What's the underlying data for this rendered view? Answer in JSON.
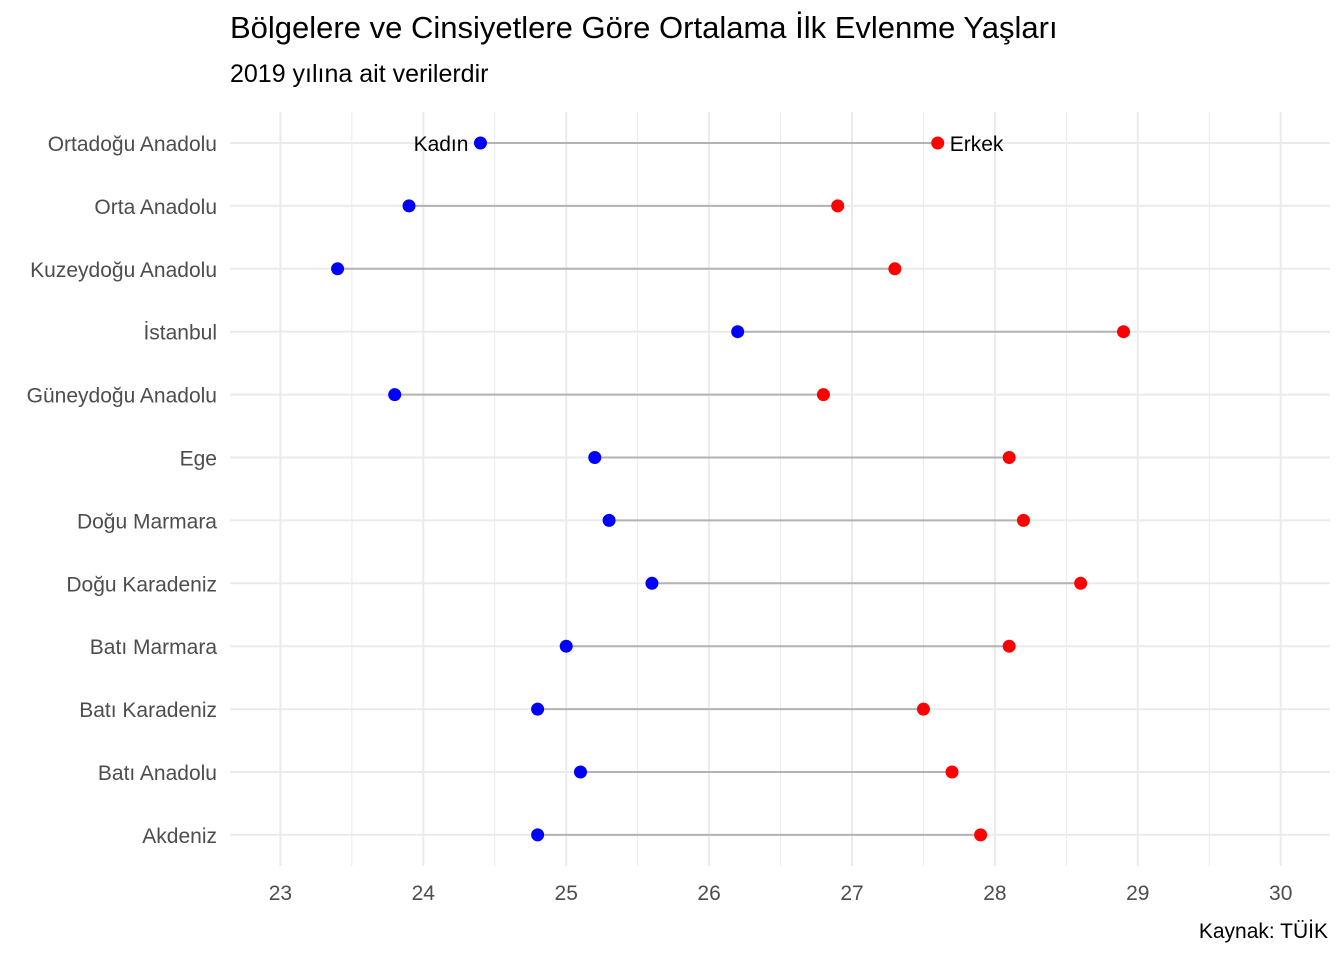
{
  "chart_data": {
    "type": "scatter",
    "title": "Bölgelere ve Cinsiyetlere Göre Ortalama İlk Evlenme Yaşları",
    "subtitle": "2019 yılına ait verilerdir",
    "caption": "Kaynak: TÜİK",
    "xlabel": "",
    "ylabel": "",
    "xlim": [
      22.65,
      30.35
    ],
    "x_ticks": [
      23,
      24,
      25,
      26,
      27,
      28,
      29,
      30
    ],
    "grid": true,
    "categories": [
      "Ortadoğu Anadolu",
      "Orta Anadolu",
      "Kuzeydoğu Anadolu",
      "İstanbul",
      "Güneydoğu Anadolu",
      "Ege",
      "Doğu Marmara",
      "Doğu Karadeniz",
      "Batı Marmara",
      "Batı Karadeniz",
      "Batı Anadolu",
      "Akdeniz"
    ],
    "series": [
      {
        "name": "Kadın",
        "color": "#0000ff",
        "values": [
          24.4,
          23.9,
          23.4,
          26.2,
          23.8,
          25.2,
          25.3,
          25.6,
          25.0,
          24.8,
          25.1,
          24.8
        ]
      },
      {
        "name": "Erkek",
        "color": "#ff0000",
        "values": [
          27.6,
          26.9,
          27.3,
          28.9,
          26.8,
          28.1,
          28.2,
          28.6,
          28.1,
          27.5,
          27.7,
          27.9
        ]
      }
    ],
    "segment_color": "#b3b3b3",
    "grid_color": "#ebebeb",
    "annotations": [
      {
        "text": "Kadın",
        "category": "Ortadoğu Anadolu",
        "series": "Kadın",
        "side": "left"
      },
      {
        "text": "Erkek",
        "category": "Ortadoğu Anadolu",
        "series": "Erkek",
        "side": "right"
      }
    ]
  }
}
